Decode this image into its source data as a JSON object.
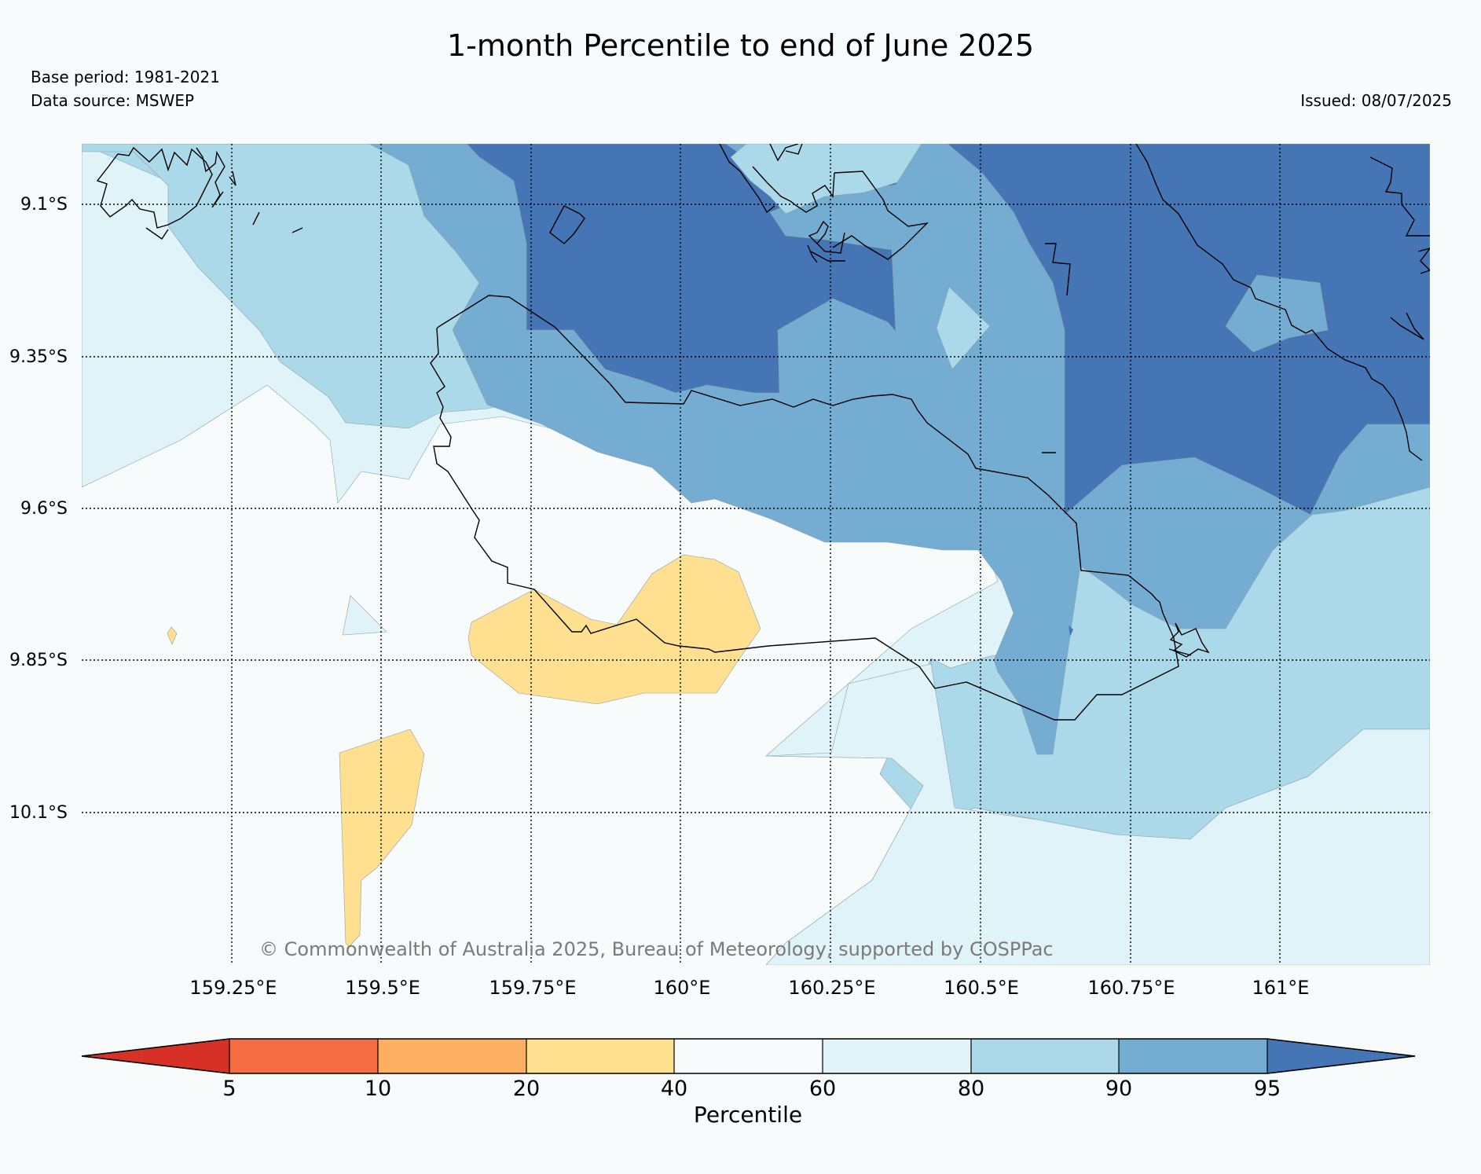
{
  "title": "1-month Percentile to end of June 2025",
  "base_period": "Base period: 1981-2021",
  "data_source": "Data source: MSWEP",
  "issued": "Issued: 08/07/2025",
  "copyright": "© Commonwealth of Australia 2025, Bureau of Meteorology, supported by COSPPac",
  "map": {
    "lat_ticks": [
      "9.1°S",
      "9.35°S",
      "9.6°S",
      "9.85°S",
      "10.1°S"
    ],
    "lon_ticks": [
      "159.25°E",
      "159.5°E",
      "159.75°E",
      "160°E",
      "160.25°E",
      "160.5°E",
      "160.75°E",
      "161°E"
    ],
    "colors": {
      "p20_40": "#fee090",
      "p40_60": "#f7fbfc",
      "p60_80": "#e0f3f8",
      "p80_90": "#abd9e9",
      "p90_95": "#74add1",
      "p95_up": "#4575b4"
    }
  },
  "colorbar": {
    "title": "Percentile",
    "ticks": [
      "5",
      "10",
      "20",
      "40",
      "60",
      "80",
      "90",
      "95"
    ],
    "colors": [
      "#d73027",
      "#f46d43",
      "#fdae61",
      "#fee090",
      "#f7fbfc",
      "#e0f3f8",
      "#abd9e9",
      "#74add1",
      "#4575b4"
    ]
  }
}
